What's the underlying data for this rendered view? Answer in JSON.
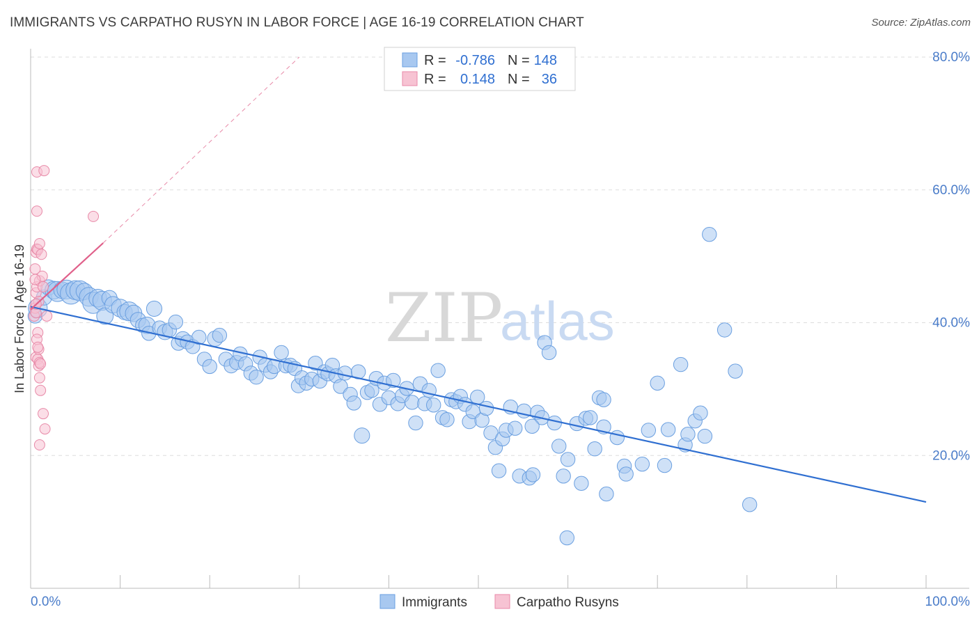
{
  "chart_data": {
    "type": "scatter",
    "title": "IMMIGRANTS VS CARPATHO RUSYN IN LABOR FORCE | AGE 16-19 CORRELATION CHART",
    "source": "Source: ZipAtlas.com",
    "xlabel": "",
    "ylabel": "In Labor Force | Age 16-19",
    "xlim": [
      0,
      100
    ],
    "ylim": [
      0,
      80
    ],
    "x_tick_labels": [
      "0.0%",
      "100.0%"
    ],
    "y_ticks": [
      20,
      40,
      60,
      80
    ],
    "y_tick_labels": [
      "20.0%",
      "40.0%",
      "60.0%",
      "80.0%"
    ],
    "grid": true,
    "watermark": {
      "part1": "ZIP",
      "part2": "atlas"
    },
    "legend": {
      "placement": "top-center",
      "rows": [
        {
          "r_label": "R =",
          "r_value": "-0.786",
          "n_label": "N =",
          "n_value": "148"
        },
        {
          "r_label": "R =",
          "r_value": "0.148",
          "n_label": "N =",
          "n_value": "36"
        }
      ]
    },
    "bottom_legend": [
      "Immigrants",
      "Carpatho Rusyns"
    ],
    "colors": {
      "immigrants_fill": "#a8c8f0",
      "immigrants_stroke": "#6a9fe0",
      "immigrants_line": "#2f6fd1",
      "rusyn_fill": "#f7c3d3",
      "rusyn_stroke": "#e88aa8",
      "rusyn_line": "#e0608a",
      "grid": "#dddddd",
      "axis": "#bbbbbb"
    },
    "series": [
      {
        "name": "Immigrants",
        "trend": {
          "x": [
            0,
            100
          ],
          "y": [
            42.4,
            13.0
          ]
        },
        "points": [
          [
            0.5,
            41.0,
            1.2
          ],
          [
            0.8,
            42.2,
            1.6
          ],
          [
            1.5,
            43.8,
            1.3
          ],
          [
            2.0,
            45.3,
            1.3
          ],
          [
            2.6,
            44.9,
            1.5
          ],
          [
            3.0,
            44.7,
            1.7
          ],
          [
            3.5,
            44.9,
            1.4
          ],
          [
            4.0,
            45.0,
            1.6
          ],
          [
            4.5,
            44.4,
            1.8
          ],
          [
            5.0,
            44.9,
            1.6
          ],
          [
            5.5,
            44.8,
            1.7
          ],
          [
            6.0,
            44.7,
            1.4
          ],
          [
            6.5,
            43.9,
            1.6
          ],
          [
            7.0,
            43.0,
            1.8
          ],
          [
            7.5,
            43.7,
            1.5
          ],
          [
            8.0,
            43.3,
            1.6
          ],
          [
            8.3,
            41.0,
            1.4
          ],
          [
            8.8,
            43.7,
            1.3
          ],
          [
            9.2,
            42.7,
            1.4
          ],
          [
            10.0,
            42.2,
            1.5
          ],
          [
            10.5,
            41.6,
            1.3
          ],
          [
            11.0,
            41.7,
            1.6
          ],
          [
            11.5,
            41.4,
            1.4
          ],
          [
            12.0,
            40.4,
            1.3
          ],
          [
            12.5,
            39.6,
            1.2
          ],
          [
            13.0,
            39.6,
            1.4
          ],
          [
            13.2,
            38.4,
            1.2
          ],
          [
            13.8,
            42.1,
            1.3
          ],
          [
            14.4,
            39.2,
            1.2
          ],
          [
            15.0,
            38.6,
            1.3
          ],
          [
            15.5,
            38.9,
            1.2
          ],
          [
            16.2,
            40.1,
            1.2
          ],
          [
            16.5,
            36.9,
            1.2
          ],
          [
            17.0,
            37.5,
            1.3
          ],
          [
            17.5,
            37.1,
            1.2
          ],
          [
            18.1,
            36.4,
            1.2
          ],
          [
            18.8,
            37.8,
            1.2
          ],
          [
            19.4,
            34.5,
            1.2
          ],
          [
            20.0,
            33.4,
            1.2
          ],
          [
            20.6,
            37.6,
            1.3
          ],
          [
            21.1,
            38.1,
            1.2
          ],
          [
            21.8,
            34.5,
            1.2
          ],
          [
            22.4,
            33.5,
            1.2
          ],
          [
            23.0,
            34.0,
            1.2
          ],
          [
            23.4,
            35.3,
            1.2
          ],
          [
            24.0,
            33.8,
            1.2
          ],
          [
            24.6,
            32.4,
            1.2
          ],
          [
            25.2,
            31.8,
            1.2
          ],
          [
            25.6,
            34.8,
            1.2
          ],
          [
            26.2,
            33.6,
            1.2
          ],
          [
            26.8,
            32.6,
            1.2
          ],
          [
            27.2,
            33.4,
            1.2
          ],
          [
            28.0,
            35.5,
            1.2
          ],
          [
            28.5,
            33.5,
            1.2
          ],
          [
            29.0,
            33.6,
            1.2
          ],
          [
            29.5,
            33.1,
            1.2
          ],
          [
            29.9,
            30.5,
            1.2
          ],
          [
            30.3,
            31.7,
            1.2
          ],
          [
            30.8,
            30.9,
            1.2
          ],
          [
            31.4,
            31.5,
            1.2
          ],
          [
            31.8,
            33.9,
            1.2
          ],
          [
            32.3,
            31.2,
            1.2
          ],
          [
            32.8,
            32.6,
            1.2
          ],
          [
            33.2,
            32.3,
            1.2
          ],
          [
            33.7,
            33.6,
            1.2
          ],
          [
            34.1,
            32.0,
            1.2
          ],
          [
            34.6,
            30.4,
            1.2
          ],
          [
            35.1,
            32.4,
            1.2
          ],
          [
            35.7,
            29.2,
            1.2
          ],
          [
            36.1,
            27.9,
            1.2
          ],
          [
            36.6,
            32.6,
            1.2
          ],
          [
            37.0,
            23.0,
            1.3
          ],
          [
            37.6,
            29.5,
            1.2
          ],
          [
            38.1,
            29.8,
            1.2
          ],
          [
            38.6,
            31.6,
            1.2
          ],
          [
            39.0,
            27.7,
            1.2
          ],
          [
            39.5,
            30.9,
            1.2
          ],
          [
            40.0,
            28.7,
            1.2
          ],
          [
            40.5,
            31.3,
            1.2
          ],
          [
            41.0,
            27.8,
            1.2
          ],
          [
            41.5,
            29.0,
            1.2
          ],
          [
            42.0,
            30.1,
            1.2
          ],
          [
            42.6,
            28.0,
            1.2
          ],
          [
            43.0,
            24.9,
            1.2
          ],
          [
            43.5,
            30.8,
            1.2
          ],
          [
            44.0,
            27.8,
            1.2
          ],
          [
            44.5,
            29.8,
            1.2
          ],
          [
            45.0,
            27.6,
            1.2
          ],
          [
            45.5,
            32.8,
            1.2
          ],
          [
            46.0,
            25.7,
            1.2
          ],
          [
            46.5,
            25.4,
            1.2
          ],
          [
            47.0,
            28.4,
            1.2
          ],
          [
            47.5,
            28.1,
            1.2
          ],
          [
            48.0,
            28.9,
            1.2
          ],
          [
            48.5,
            27.7,
            1.2
          ],
          [
            49.0,
            25.1,
            1.2
          ],
          [
            49.4,
            26.6,
            1.2
          ],
          [
            49.9,
            28.8,
            1.2
          ],
          [
            50.4,
            25.3,
            1.2
          ],
          [
            50.9,
            27.1,
            1.2
          ],
          [
            51.4,
            23.4,
            1.2
          ],
          [
            51.9,
            21.2,
            1.2
          ],
          [
            52.3,
            17.7,
            1.2
          ],
          [
            52.7,
            22.5,
            1.2
          ],
          [
            53.1,
            23.8,
            1.2
          ],
          [
            53.6,
            27.3,
            1.2
          ],
          [
            54.1,
            24.1,
            1.2
          ],
          [
            54.6,
            16.9,
            1.2
          ],
          [
            55.1,
            26.7,
            1.2
          ],
          [
            55.7,
            16.6,
            1.2
          ],
          [
            56.1,
            17.1,
            1.2
          ],
          [
            56.6,
            26.5,
            1.2
          ],
          [
            57.1,
            25.7,
            1.2
          ],
          [
            57.4,
            37.0,
            1.2
          ],
          [
            57.9,
            35.5,
            1.2
          ],
          [
            58.5,
            24.9,
            1.2
          ],
          [
            59.0,
            21.4,
            1.2
          ],
          [
            59.5,
            16.9,
            1.2
          ],
          [
            60.0,
            19.4,
            1.2
          ],
          [
            61.0,
            24.8,
            1.2
          ],
          [
            61.5,
            15.8,
            1.2
          ],
          [
            62.0,
            25.6,
            1.2
          ],
          [
            62.5,
            25.7,
            1.2
          ],
          [
            63.0,
            21.0,
            1.2
          ],
          [
            63.5,
            28.7,
            1.2
          ],
          [
            64.0,
            24.3,
            1.2
          ],
          [
            64.3,
            14.2,
            1.2
          ],
          [
            65.5,
            22.7,
            1.2
          ],
          [
            66.3,
            18.4,
            1.2
          ],
          [
            68.3,
            18.7,
            1.2
          ],
          [
            69.0,
            23.8,
            1.2
          ],
          [
            70.0,
            30.9,
            1.2
          ],
          [
            70.8,
            18.5,
            1.2
          ],
          [
            71.2,
            23.9,
            1.2
          ],
          [
            72.6,
            33.7,
            1.2
          ],
          [
            73.1,
            21.6,
            1.2
          ],
          [
            73.4,
            23.2,
            1.2
          ],
          [
            74.2,
            25.2,
            1.2
          ],
          [
            74.8,
            26.4,
            1.2
          ],
          [
            75.3,
            22.9,
            1.2
          ],
          [
            75.8,
            53.3,
            1.2
          ],
          [
            77.5,
            38.9,
            1.2
          ],
          [
            78.7,
            32.7,
            1.2
          ],
          [
            80.3,
            12.6,
            1.2
          ],
          [
            59.9,
            7.6,
            1.2
          ],
          [
            66.5,
            17.2,
            1.2
          ],
          [
            64.0,
            28.4,
            1.2
          ],
          [
            56.0,
            24.4,
            1.2
          ]
        ]
      },
      {
        "name": "Carpatho Rusyns",
        "trend": {
          "x": [
            0,
            8.1
          ],
          "y": [
            42.0,
            52.0
          ]
        },
        "trend_extension": {
          "x": [
            8.1,
            30
          ],
          "y": [
            52.0,
            80.0
          ]
        },
        "points": [
          [
            0.4,
            41.0
          ],
          [
            0.5,
            42.2
          ],
          [
            0.6,
            41.5
          ],
          [
            0.6,
            44.5
          ],
          [
            0.7,
            45.4
          ],
          [
            0.5,
            48.1
          ],
          [
            0.6,
            50.6
          ],
          [
            0.7,
            51.1
          ],
          [
            0.8,
            51.0
          ],
          [
            1.0,
            51.9
          ],
          [
            1.2,
            50.3
          ],
          [
            1.0,
            46.3
          ],
          [
            1.3,
            47.0
          ],
          [
            1.4,
            45.4
          ],
          [
            0.6,
            34.8
          ],
          [
            0.8,
            34.5
          ],
          [
            0.9,
            33.5
          ],
          [
            1.0,
            34.0
          ],
          [
            1.1,
            33.8
          ],
          [
            0.9,
            36.0
          ],
          [
            0.8,
            38.5
          ],
          [
            0.7,
            37.5
          ],
          [
            1.0,
            31.7
          ],
          [
            1.1,
            29.8
          ],
          [
            1.4,
            26.3
          ],
          [
            1.6,
            24.0
          ],
          [
            1.0,
            21.6
          ],
          [
            0.7,
            62.7
          ],
          [
            1.5,
            62.9
          ],
          [
            0.7,
            56.8
          ],
          [
            7.0,
            56.0
          ],
          [
            1.8,
            41.0
          ],
          [
            0.5,
            46.5
          ],
          [
            0.9,
            43.2
          ],
          [
            0.6,
            42.8
          ],
          [
            0.8,
            36.3
          ]
        ]
      }
    ]
  }
}
